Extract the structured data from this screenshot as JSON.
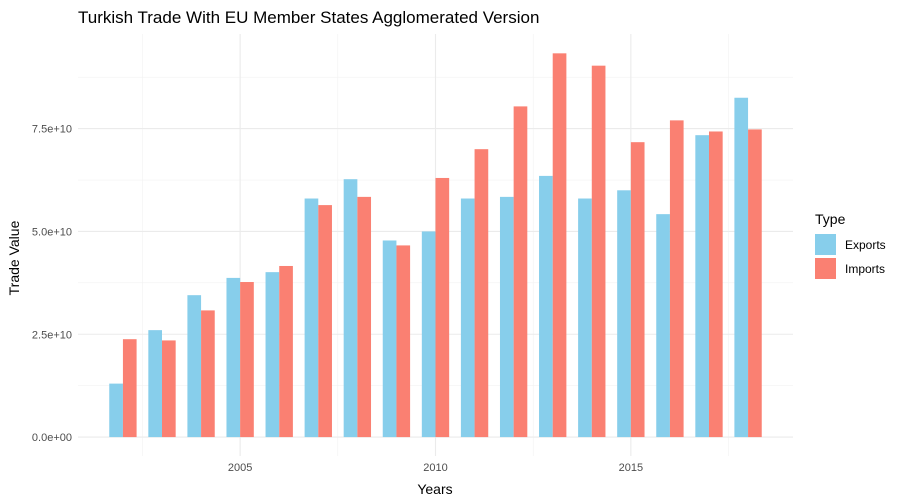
{
  "chart_data": {
    "type": "bar",
    "title": "Turkish Trade With EU Member States Agglomerated Version",
    "xlabel": "Years",
    "ylabel": "Trade Value",
    "x": [
      2002,
      2003,
      2004,
      2005,
      2006,
      2007,
      2008,
      2009,
      2010,
      2011,
      2012,
      2013,
      2014,
      2015,
      2016,
      2017,
      2018
    ],
    "series": [
      {
        "name": "Exports",
        "color": "#87CEEB",
        "values": [
          13000000000.0,
          26000000000.0,
          34500000000.0,
          38700000000.0,
          40100000000.0,
          58000000000.0,
          62700000000.0,
          47800000000.0,
          50000000000.0,
          58000000000.0,
          58400000000.0,
          63500000000.0,
          58000000000.0,
          60000000000.0,
          54200000000.0,
          73400000000.0,
          82500000000.0
        ]
      },
      {
        "name": "Imports",
        "color": "#FA8072",
        "values": [
          23800000000.0,
          23500000000.0,
          30800000000.0,
          37700000000.0,
          41600000000.0,
          56400000000.0,
          58400000000.0,
          46600000000.0,
          63000000000.0,
          70000000000.0,
          80400000000.0,
          93300000000.0,
          90300000000.0,
          71700000000.0,
          77000000000.0,
          74300000000.0,
          74800000000.0
        ]
      }
    ],
    "xticks": [
      2005,
      2010,
      2015
    ],
    "xtick_labels": [
      "2005",
      "2010",
      "2015"
    ],
    "yticks": [
      0,
      25000000000.0,
      50000000000.0,
      75000000000.0
    ],
    "ytick_labels": [
      "0.0e+00",
      "2.5e+10",
      "5.0e+10",
      "7.5e+10"
    ],
    "xlim": [
      2000.85,
      2019.15
    ],
    "ylim": [
      -4600000000.0,
      98000000000.0
    ],
    "grid": true,
    "legend": {
      "title": "Type",
      "position": "right"
    }
  }
}
